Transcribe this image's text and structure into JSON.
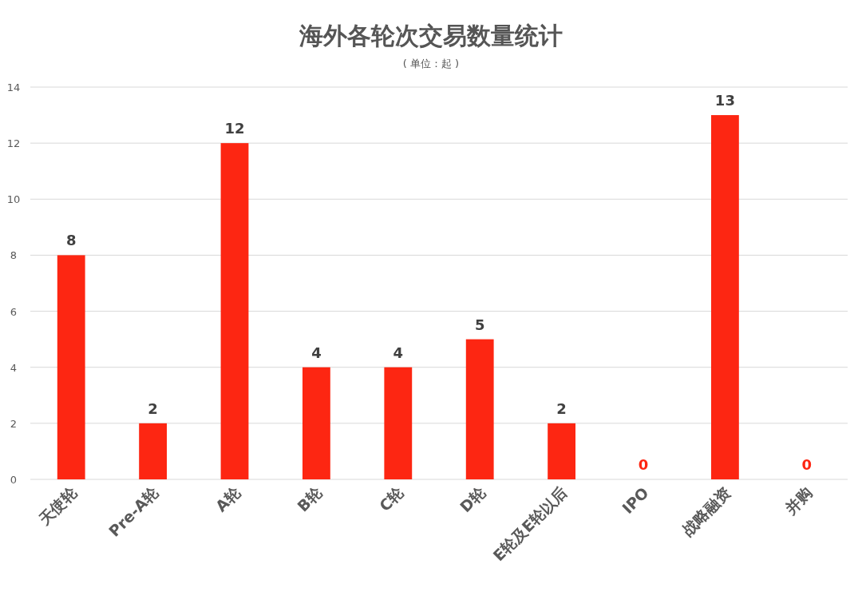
{
  "chart_data": {
    "type": "bar",
    "title": "海外各轮次交易数量统计",
    "subtitle": "( 单位：起 )",
    "categories": [
      "天使轮",
      "Pre-A轮",
      "A轮",
      "B轮",
      "C轮",
      "D轮",
      "E轮及E轮以后",
      "IPO",
      "战略融资",
      "并购"
    ],
    "values": [
      8,
      2,
      12,
      4,
      4,
      5,
      2,
      0,
      13,
      0
    ],
    "color": "#fd2612",
    "ylim": [
      0,
      14
    ],
    "yticks": [
      0,
      2,
      4,
      6,
      8,
      10,
      12,
      14
    ],
    "grid": "y",
    "data_labels": true
  }
}
